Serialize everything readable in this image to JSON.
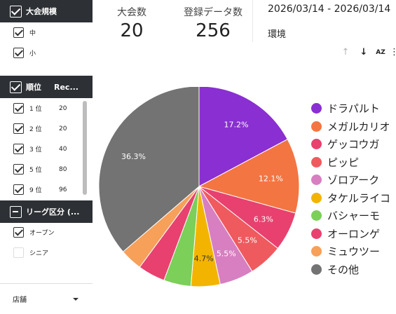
{
  "filters": {
    "scale": {
      "header": "大会規模",
      "items": [
        {
          "label": "中",
          "checked": true
        },
        {
          "label": "小",
          "checked": true
        }
      ]
    },
    "rank": {
      "header": "順位",
      "header_col2": "Rec...",
      "items": [
        {
          "label": "1 位",
          "value": "20",
          "checked": true
        },
        {
          "label": "2 位",
          "value": "20",
          "checked": true
        },
        {
          "label": "3 位",
          "value": "40",
          "checked": true
        },
        {
          "label": "5 位",
          "value": "80",
          "checked": true
        },
        {
          "label": "9 位",
          "value": "96",
          "checked": true
        }
      ]
    },
    "league": {
      "header": "リーグ区分 (...",
      "items": [
        {
          "label": "オープン",
          "checked": true
        },
        {
          "label": "シニア",
          "checked": false
        }
      ]
    },
    "store": {
      "label": "店舗"
    }
  },
  "kpis": [
    {
      "label": "大会数",
      "value": "20"
    },
    {
      "label": "登録データ数",
      "value": "256"
    }
  ],
  "date_range": "2026/03/14 - 2026/03/14",
  "environment_label": "環境",
  "toolbar": {
    "sort_up_icon": "arrow-up",
    "sort_down_icon": "arrow-down",
    "sort_az_label": "AZ",
    "more_icon": "more-vertical"
  },
  "chart_data": {
    "type": "pie",
    "title": "",
    "slices": [
      {
        "name": "ドラパルト",
        "value": 17.2,
        "label": "17.2%",
        "color": "#8a2fd1"
      },
      {
        "name": "メガルカリオ",
        "value": 12.1,
        "label": "12.1%",
        "color": "#f37542"
      },
      {
        "name": "ゲッコウガ",
        "value": 6.3,
        "label": "6.3%",
        "color": "#e8416f"
      },
      {
        "name": "ピッピ",
        "value": 5.5,
        "label": "5.5%",
        "color": "#ef5a5f"
      },
      {
        "name": "ゾロアーク",
        "value": 5.5,
        "label": "5.5%",
        "color": "#d77fc1"
      },
      {
        "name": "タケルライコ",
        "value": 4.7,
        "label": "4.7%",
        "color": "#f3b400"
      },
      {
        "name": "バシャーモ",
        "value": 4.4,
        "label": "",
        "color": "#7ccf59"
      },
      {
        "name": "オーロンゲ",
        "value": 4.4,
        "label": "",
        "color": "#e8416f"
      },
      {
        "name": "ミュウツー",
        "value": 3.6,
        "label": "",
        "color": "#f6a05a"
      },
      {
        "name": "その他",
        "value": 36.3,
        "label": "36.3%",
        "color": "#737373"
      }
    ],
    "legend_position": "right"
  }
}
